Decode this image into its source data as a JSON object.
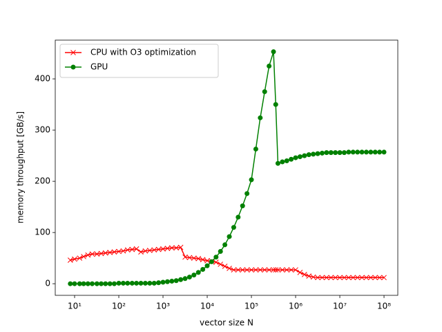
{
  "chart_data": {
    "type": "line",
    "x_label": "vector size N",
    "y_label": "memory throughput [GB/s]",
    "x_log": true,
    "legend": "upper left",
    "xlim": [
      3.65,
      205000000
    ],
    "ylim": [
      -22.7,
      475.7
    ],
    "xticks": [
      {
        "value": 10,
        "label": "10¹"
      },
      {
        "value": 100,
        "label": "10²"
      },
      {
        "value": 1000,
        "label": "10³"
      },
      {
        "value": 10000,
        "label": "10⁴"
      },
      {
        "value": 100000,
        "label": "10⁵"
      },
      {
        "value": 1000000,
        "label": "10⁶"
      },
      {
        "value": 10000000,
        "label": "10⁷"
      },
      {
        "value": 100000000,
        "label": "10⁸"
      }
    ],
    "yticks": [
      0,
      100,
      200,
      300,
      400
    ],
    "x": [
      8,
      10,
      13,
      16,
      20,
      25,
      32,
      40,
      50,
      63,
      79,
      100,
      126,
      158,
      200,
      251,
      316,
      398,
      501,
      631,
      794,
      1000,
      1259,
      1585,
      1995,
      2512,
      3162,
      3981,
      5012,
      6310,
      7943,
      10000,
      12589,
      15849,
      19953,
      25119,
      31623,
      39811,
      50119,
      63096,
      79433,
      100000,
      125893,
      158489,
      199526,
      251189,
      316228,
      355000,
      398107,
      501187,
      630957,
      794328,
      1000000,
      1258925,
      1584893,
      1995262,
      2511886,
      3162278,
      3981072,
      5011872,
      6309573,
      7943282,
      10000000,
      12589254,
      15848932,
      19952623,
      25118864,
      31622777,
      39810717,
      50118723,
      63095734,
      79432823,
      100000000
    ],
    "series": [
      {
        "name": "CPU with O3 optimization",
        "color": "#ff0000",
        "marker": "x",
        "values": [
          46,
          48,
          50,
          53,
          56,
          58,
          58,
          59,
          60,
          61,
          62,
          63,
          64,
          66,
          67,
          68,
          62,
          64,
          65,
          66,
          67,
          68,
          69,
          70,
          70,
          71,
          52,
          51,
          50,
          49,
          47,
          45,
          44,
          42,
          38,
          34,
          30,
          27,
          27,
          27,
          27,
          27,
          27,
          27,
          27,
          27,
          27,
          27,
          27,
          27,
          27,
          27,
          27,
          22,
          18,
          15,
          13,
          12,
          12,
          12,
          12,
          12,
          12,
          12,
          12,
          12,
          12,
          12,
          12,
          12,
          12,
          12,
          12
        ]
      },
      {
        "name": "GPU",
        "color": "#008000",
        "marker": "o",
        "values": [
          0,
          0,
          0,
          0,
          0,
          0,
          0,
          0,
          0,
          0,
          0,
          1,
          1,
          1,
          1,
          1,
          1,
          1,
          1,
          1,
          2,
          3,
          4,
          5,
          6,
          8,
          10,
          13,
          17,
          22,
          28,
          35,
          43,
          52,
          63,
          76,
          92,
          110,
          130,
          152,
          176,
          203,
          263,
          324,
          375,
          425,
          453,
          350,
          235,
          238,
          240,
          243,
          246,
          248,
          250,
          252,
          253,
          254,
          255,
          256,
          256,
          256,
          256,
          256,
          257,
          257,
          257,
          257,
          257,
          257,
          257,
          257,
          257
        ]
      }
    ]
  }
}
